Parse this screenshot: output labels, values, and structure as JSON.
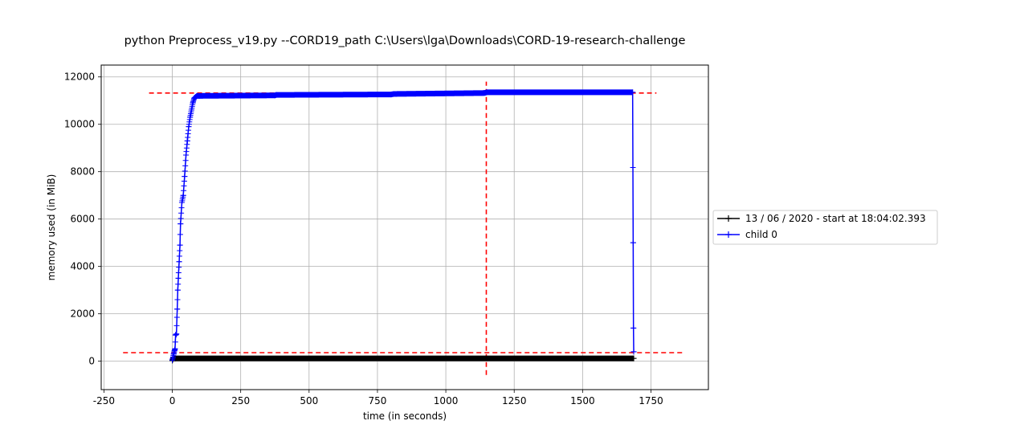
{
  "chart_data": {
    "type": "line",
    "title": "python Preprocess_v19.py --CORD19_path C:\\Users\\lga\\Downloads\\CORD-19-research-challenge",
    "xlabel": "time (in seconds)",
    "ylabel": "memory used (in MiB)",
    "xlim": [
      -260,
      1960
    ],
    "ylim": [
      -1200,
      12500
    ],
    "xticks": [
      -250,
      0,
      250,
      500,
      750,
      1000,
      1250,
      1500,
      1750
    ],
    "yticks": [
      0,
      2000,
      4000,
      6000,
      8000,
      10000,
      12000
    ],
    "grid": true,
    "legend_position": "outside-right",
    "series": [
      {
        "name": "13 / 06 / 2020 - start at 18:04:02.393",
        "color": "#000000",
        "marker": "+",
        "x": [
          0,
          1,
          2,
          3,
          4,
          5,
          6,
          8,
          10,
          12,
          1687
        ],
        "y": [
          30,
          60,
          90,
          120,
          140,
          140,
          130,
          120,
          120,
          120,
          120
        ]
      },
      {
        "name": "child 0",
        "color": "#0000ff",
        "marker": "+",
        "x": [
          0,
          5,
          8,
          10,
          12,
          15,
          18,
          20,
          22,
          25,
          28,
          30,
          35,
          40,
          45,
          50,
          55,
          60,
          65,
          70,
          75,
          80,
          85,
          90,
          95,
          100,
          375,
          380,
          800,
          810,
          1140,
          1150,
          1683,
          1685,
          1686,
          1687
        ],
        "y": [
          50,
          300,
          450,
          520,
          1100,
          1150,
          2200,
          3000,
          3500,
          4200,
          4900,
          5800,
          6700,
          7000,
          7800,
          8700,
          9300,
          9900,
          10300,
          10600,
          10900,
          11100,
          11150,
          11200,
          11200,
          11200,
          11220,
          11240,
          11260,
          11280,
          11320,
          11350,
          11350,
          5000,
          1400,
          400
        ]
      }
    ],
    "annotations": [
      {
        "type": "hline",
        "y": 11320,
        "x_range": [
          -85,
          1770
        ],
        "color": "#ff0000",
        "style": "dashed"
      },
      {
        "type": "hline",
        "y": 360,
        "x_range": [
          -180,
          1865
        ],
        "color": "#ff0000",
        "style": "dashed"
      },
      {
        "type": "vline",
        "x": 1148,
        "y_range": [
          -580,
          11800
        ],
        "color": "#ff0000",
        "style": "dashed"
      }
    ]
  }
}
